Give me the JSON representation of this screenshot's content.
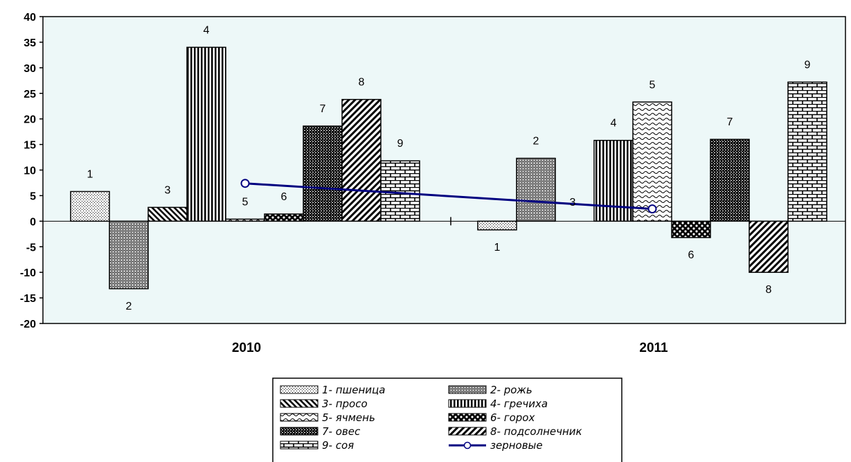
{
  "chart_data": {
    "type": "bar",
    "categories": [
      "2010",
      "2011"
    ],
    "ylim": [
      -20,
      40
    ],
    "yticks": [
      40,
      35,
      30,
      25,
      20,
      15,
      10,
      5,
      0,
      -5,
      -10,
      -15,
      -20
    ],
    "grid": false,
    "legend_position": "bottom",
    "series": [
      {
        "name": "1- пшеница",
        "label": "1",
        "pattern": "dots",
        "values": [
          5.8,
          -1.7
        ]
      },
      {
        "name": "2- рожь",
        "label": "2",
        "pattern": "crosshatch",
        "values": [
          -13.2,
          12.3
        ]
      },
      {
        "name": "3- просо",
        "label": "3",
        "pattern": "diag-back",
        "values": [
          2.7,
          null
        ]
      },
      {
        "name": "4- гречиха",
        "label": "4",
        "pattern": "vertical",
        "values": [
          34.0,
          15.8
        ]
      },
      {
        "name": "5- ячмень",
        "label": "5",
        "pattern": "wave",
        "values": [
          0.4,
          23.3
        ]
      },
      {
        "name": "6- горох",
        "label": "6",
        "pattern": "checker",
        "values": [
          1.4,
          -3.2
        ]
      },
      {
        "name": "7- овес",
        "label": "7",
        "pattern": "dense",
        "values": [
          18.6,
          16.0
        ]
      },
      {
        "name": "8- подсолнечник",
        "label": "8",
        "pattern": "diag-fwd",
        "values": [
          23.8,
          -10.0
        ]
      },
      {
        "name": "9- соя",
        "label": "9",
        "pattern": "brick",
        "values": [
          11.8,
          27.2
        ]
      }
    ],
    "line_series": {
      "name": "зерновые",
      "label": "3",
      "color": "#000080",
      "points": [
        {
          "category": "2010",
          "value": 7.4
        },
        {
          "category": "2011",
          "value": 2.4
        }
      ]
    },
    "colors": {
      "plot_background": "#edf8f8",
      "bar_stroke": "#000000",
      "line": "#000080"
    }
  }
}
